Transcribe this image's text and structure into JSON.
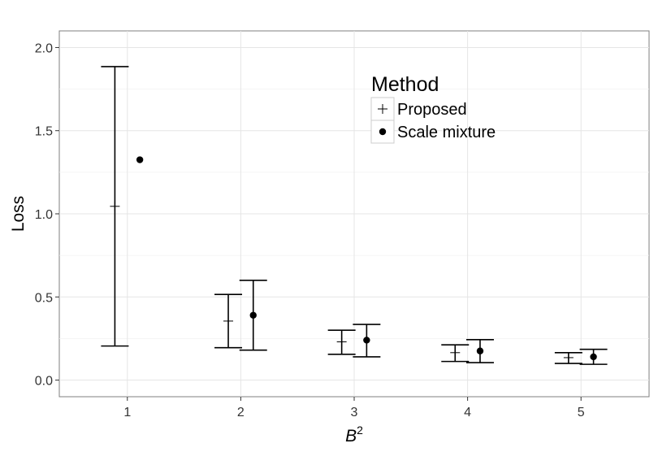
{
  "chart_data": {
    "type": "scatter",
    "title": "",
    "xlabel": "B",
    "xlabel_superscript": "2",
    "ylabel": "Loss",
    "categories": [
      "1",
      "2",
      "3",
      "4",
      "5"
    ],
    "x": [
      1,
      2,
      3,
      4,
      5
    ],
    "xlim": [
      0.4,
      5.6
    ],
    "ylim": [
      -0.1,
      2.1
    ],
    "yticks": [
      0.0,
      0.5,
      1.0,
      1.5,
      2.0
    ],
    "ytick_labels": [
      "0.0",
      "0.5",
      "1.0",
      "1.5",
      "2.0"
    ],
    "grid": true,
    "legend_position": "top-right",
    "legend_title": "Method",
    "series": [
      {
        "name": "Proposed",
        "marker": "plus",
        "values": [
          1.045,
          0.355,
          0.23,
          0.165,
          0.135
        ],
        "lower": [
          0.205,
          0.195,
          0.155,
          0.112,
          0.1
        ],
        "upper": [
          1.885,
          0.515,
          0.3,
          0.212,
          0.165
        ]
      },
      {
        "name": "Scale mixture",
        "marker": "dot",
        "values": [
          1.325,
          0.39,
          0.24,
          0.175,
          0.14
        ],
        "lower": [
          null,
          0.18,
          0.14,
          0.105,
          0.095
        ],
        "upper": [
          null,
          0.6,
          0.335,
          0.243,
          0.185
        ]
      }
    ]
  }
}
